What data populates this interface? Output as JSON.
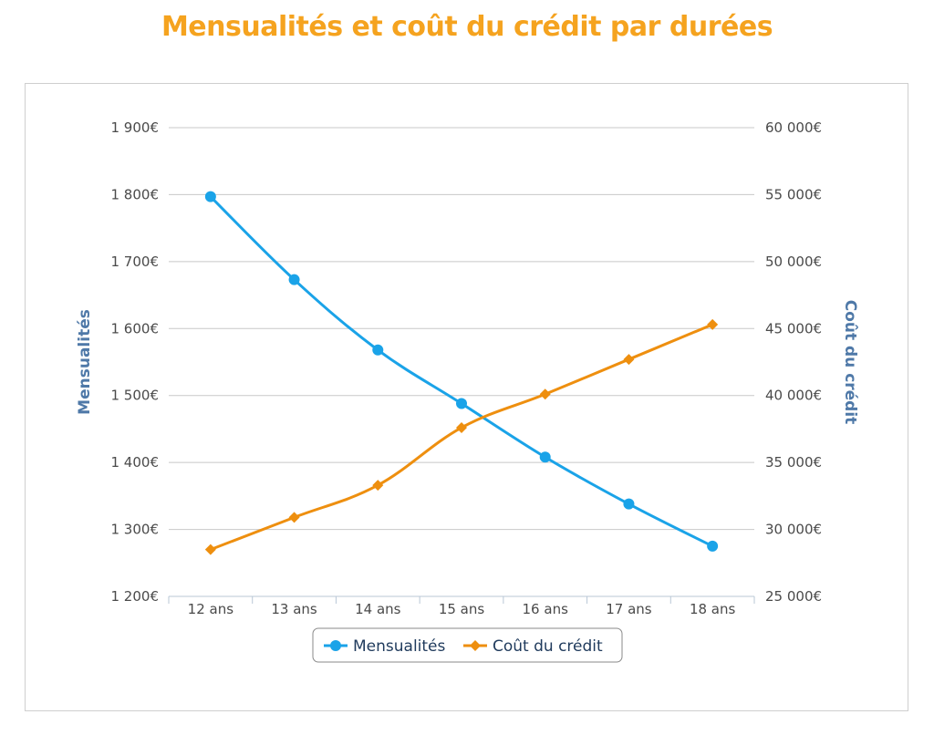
{
  "title": "Mensualités et coût du crédit par durées",
  "colors": {
    "title": "#f5a31f",
    "mensualites": "#1aa3e8",
    "cout": "#ee8f0f",
    "axis_title": "#4f79a8",
    "grid": "#c8c8c8"
  },
  "chart_data": {
    "type": "line",
    "categories": [
      "12 ans",
      "13 ans",
      "14 ans",
      "15 ans",
      "16 ans",
      "17 ans",
      "18 ans"
    ],
    "y_left": {
      "label": "Mensualités",
      "ylim": [
        1200,
        1900
      ],
      "ticks": [
        1200,
        1300,
        1400,
        1500,
        1600,
        1700,
        1800,
        1900
      ],
      "tick_labels": [
        "1 200€",
        "1 300€",
        "1 400€",
        "1 500€",
        "1 600€",
        "1 700€",
        "1 800€",
        "1 900€"
      ]
    },
    "y_right": {
      "label": "Coût du crédit",
      "ylim": [
        25000,
        60000
      ],
      "ticks": [
        25000,
        30000,
        35000,
        40000,
        45000,
        50000,
        55000,
        60000
      ],
      "tick_labels": [
        "25 000€",
        "30 000€",
        "35 000€",
        "40 000€",
        "45 000€",
        "50 000€",
        "55 000€",
        "60 000€"
      ]
    },
    "series": [
      {
        "name": "Mensualités",
        "axis": "left",
        "marker": "circle",
        "values": [
          1797,
          1673,
          1568,
          1488,
          1408,
          1338,
          1275
        ]
      },
      {
        "name": "Coût du crédit",
        "axis": "right",
        "marker": "diamond",
        "values": [
          28500,
          30900,
          33300,
          37600,
          40100,
          42700,
          45300
        ]
      }
    ],
    "grid": true,
    "legend_position": "bottom-center"
  }
}
